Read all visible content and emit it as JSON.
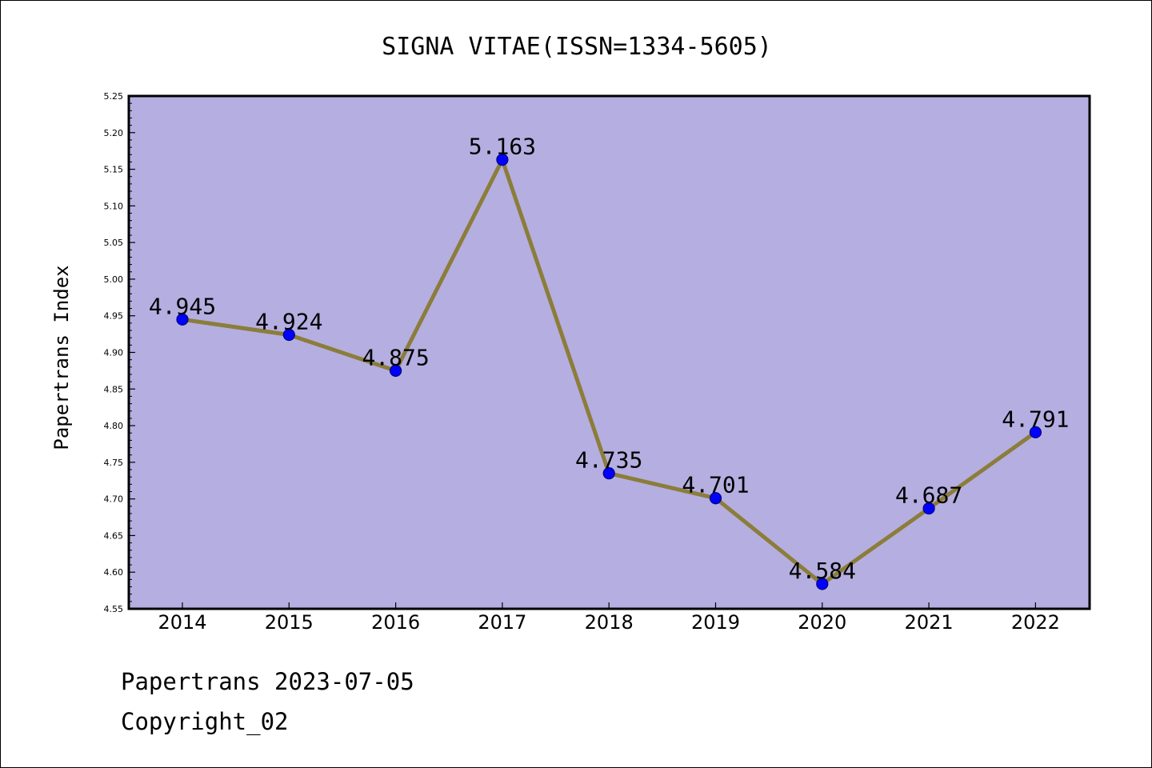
{
  "colors": {
    "plot_background": "#b5aee1",
    "line": "#8b7d3a",
    "marker_fill": "#0000ff",
    "marker_edge": "#000080",
    "axis": "#000000"
  },
  "footer": {
    "line1": "Papertrans 2023-07-05",
    "line2": "Copyright_02"
  },
  "chart_data": {
    "type": "line",
    "title": "SIGNA VITAE(ISSN=1334-5605)",
    "xlabel": "",
    "ylabel": "Papertrans Index",
    "categories": [
      "2014",
      "2015",
      "2016",
      "2017",
      "2018",
      "2019",
      "2020",
      "2021",
      "2022"
    ],
    "values": [
      4.945,
      4.924,
      4.875,
      5.163,
      4.735,
      4.701,
      4.584,
      4.687,
      4.791
    ],
    "data_labels": [
      "4.945",
      "4.924",
      "4.875",
      "5.163",
      "4.735",
      "4.701",
      "4.584",
      "4.687",
      "4.791"
    ],
    "ylim": [
      4.55,
      5.25
    ],
    "yticks": [
      "4.55",
      "4.60",
      "4.65",
      "4.70",
      "4.75",
      "4.80",
      "4.85",
      "4.90",
      "4.95",
      "5.00",
      "5.05",
      "5.10",
      "5.15",
      "5.20",
      "5.25"
    ],
    "grid": false,
    "legend": "none"
  }
}
